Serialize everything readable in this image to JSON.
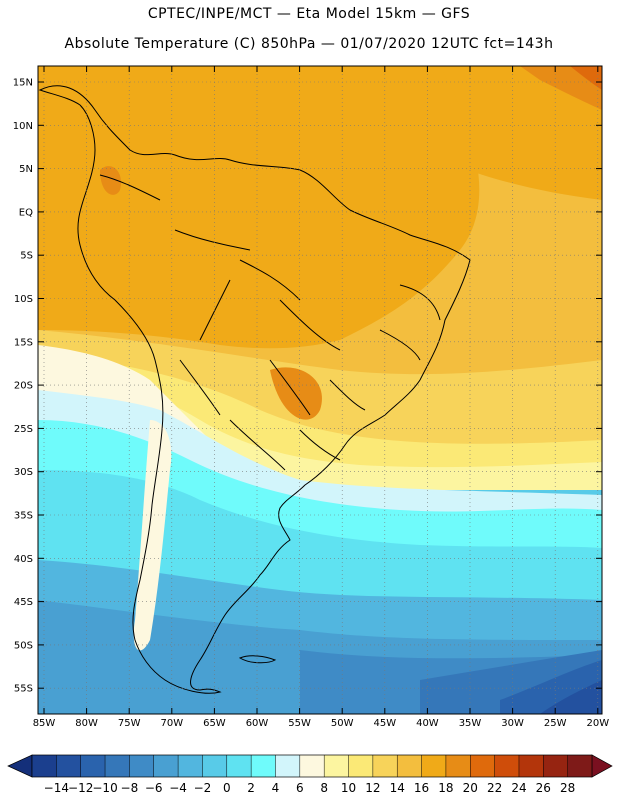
{
  "header": {
    "line1": "CPTEC/INPE/MCT —  Eta Model 15km — GFS",
    "line2": "Absolute Temperature (C) 850hPa — 01/07/2020 12UTC fct=143h"
  },
  "axes": {
    "lat_labels": [
      "15N",
      "10N",
      "5N",
      "EQ",
      "5S",
      "10S",
      "15S",
      "20S",
      "25S",
      "30S",
      "35S",
      "40S",
      "45S",
      "50S",
      "55S"
    ],
    "lon_labels": [
      "85W",
      "80W",
      "75W",
      "70W",
      "65W",
      "60W",
      "55W",
      "50W",
      "45W",
      "40W",
      "35W",
      "30W",
      "25W",
      "20W"
    ]
  },
  "colorbar": {
    "labels": [
      "-14",
      "-12",
      "-10",
      "-8",
      "-6",
      "-4",
      "-2",
      "0",
      "2",
      "4",
      "6",
      "8",
      "10",
      "12",
      "14",
      "16",
      "18",
      "20",
      "22",
      "24",
      "26",
      "28"
    ],
    "colors": [
      "#1b3f8e",
      "#23519f",
      "#2a63ad",
      "#3577b9",
      "#3f8bc6",
      "#49a0d2",
      "#52b6df",
      "#58cbe8",
      "#5fe2f1",
      "#6ffbfb",
      "#d2f5fb",
      "#fdf8df",
      "#fcf5a0",
      "#fbe976",
      "#f7d35a",
      "#f3be3e",
      "#f0aa18",
      "#e78c16",
      "#df6a0c",
      "#cf4d0a",
      "#b3350b",
      "#962411",
      "#7e1a18"
    ],
    "under_color": "#142f7a",
    "over_color": "#7a1020"
  },
  "map": {
    "grid": "dotted",
    "land_outline_color": "#000000"
  }
}
